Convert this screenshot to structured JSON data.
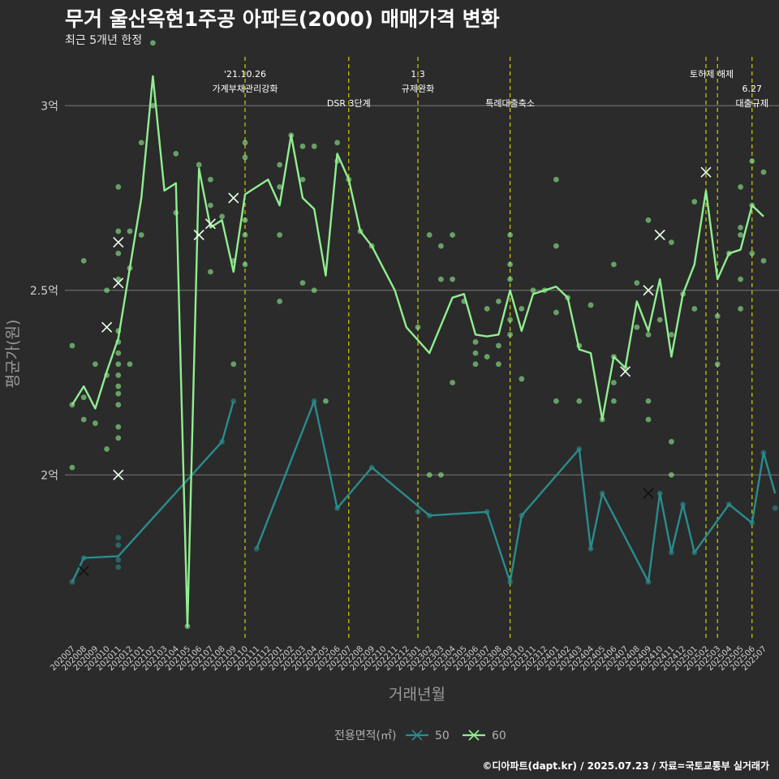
{
  "header": {
    "title": "무거 울산옥현1주공 아파트(2000) 매매가격 변화",
    "subtitle": "최근 5개년 한정"
  },
  "caption": "©디아파트(dapt.kr) / 2025.07.23 / 자료=국토교통부 실거래가",
  "colors": {
    "background": "#2b2b2b",
    "s50": "#2a8c8c",
    "s60": "#90ee90",
    "vline": "#dddd00",
    "grid": "#6a6a6a"
  },
  "chart_data": {
    "type": "line",
    "xlabel": "거래년월",
    "ylabel": "평균가(원)",
    "ylim": [
      15500,
      31500
    ],
    "yticks": [
      {
        "value": 20000,
        "label": "2억"
      },
      {
        "value": 25000,
        "label": "2.5억"
      },
      {
        "value": 30000,
        "label": "3억"
      }
    ],
    "categories": [
      "202007",
      "202008",
      "202009",
      "202010",
      "202011",
      "202012",
      "202101",
      "202102",
      "202103",
      "202104",
      "202105",
      "202106",
      "202107",
      "202108",
      "202109",
      "202110",
      "202111",
      "202112",
      "202201",
      "202202",
      "202203",
      "202204",
      "202205",
      "202206",
      "202207",
      "202208",
      "202209",
      "202210",
      "202211",
      "202212",
      "202301",
      "202302",
      "202303",
      "202304",
      "202305",
      "202306",
      "202307",
      "202308",
      "202309",
      "202310",
      "202311",
      "202312",
      "202401",
      "202402",
      "202403",
      "202404",
      "202405",
      "202406",
      "202407",
      "202408",
      "202409",
      "202410",
      "202411",
      "202412",
      "202501",
      "202502",
      "202503",
      "202504",
      "202505",
      "202506",
      "202507"
    ],
    "legend": {
      "title": "전용면적(㎡)",
      "position": "bottom"
    },
    "series": [
      {
        "name": "50",
        "color": "#2a8c8c",
        "points": [
          [
            0,
            17.1
          ],
          [
            1,
            17.75
          ],
          [
            4,
            17.8
          ],
          [
            13,
            20.9
          ],
          [
            14,
            22.0
          ],
          [
            15,
            null
          ],
          [
            16,
            18.0
          ],
          [
            21,
            22.0
          ],
          [
            23,
            19.1
          ],
          [
            26,
            20.2
          ],
          [
            31,
            18.9
          ],
          [
            36,
            19.0
          ],
          [
            38,
            17.1
          ],
          [
            39,
            18.9
          ],
          [
            44,
            20.7
          ],
          [
            45,
            18.0
          ],
          [
            46,
            19.5
          ],
          [
            50,
            17.1
          ],
          [
            51,
            19.5
          ],
          [
            52,
            17.9
          ],
          [
            53,
            19.2
          ],
          [
            54,
            17.9
          ],
          [
            57,
            19.2
          ],
          [
            59,
            18.7
          ],
          [
            60,
            20.6
          ],
          [
            61,
            19.5
          ]
        ],
        "dots": [
          [
            0,
            17.1
          ],
          [
            1,
            17.75
          ],
          [
            4,
            17.5
          ],
          [
            4,
            17.7
          ],
          [
            4,
            18.1
          ],
          [
            4,
            18.3
          ],
          [
            13,
            20.9
          ],
          [
            14,
            22.0
          ],
          [
            16,
            18.0
          ],
          [
            21,
            22.0
          ],
          [
            23,
            19.1
          ],
          [
            26,
            20.2
          ],
          [
            30,
            19.0
          ],
          [
            31,
            18.9
          ],
          [
            36,
            19.0
          ],
          [
            38,
            17.1
          ],
          [
            39,
            18.9
          ],
          [
            44,
            20.7
          ],
          [
            45,
            18.0
          ],
          [
            46,
            19.5
          ],
          [
            50,
            17.1
          ],
          [
            51,
            19.5
          ],
          [
            52,
            17.9
          ],
          [
            53,
            19.2
          ],
          [
            54,
            17.9
          ],
          [
            57,
            19.2
          ],
          [
            59,
            18.7
          ],
          [
            60,
            20.6
          ],
          [
            61,
            19.1
          ]
        ],
        "xmarks": [
          [
            1,
            17.4
          ],
          [
            50,
            19.5
          ]
        ]
      },
      {
        "name": "60",
        "color": "#90ee90",
        "points": [
          [
            0,
            21.9
          ],
          [
            1,
            22.4
          ],
          [
            2,
            21.8
          ],
          [
            3,
            22.8
          ],
          [
            4,
            23.7
          ],
          [
            5,
            25.6
          ],
          [
            6,
            27.5
          ],
          [
            7,
            30.8
          ],
          [
            8,
            27.7
          ],
          [
            9,
            27.9
          ],
          [
            10,
            15.9
          ],
          [
            11,
            28.3
          ],
          [
            12,
            26.7
          ],
          [
            13,
            26.9
          ],
          [
            14,
            25.5
          ],
          [
            15,
            27.6
          ],
          [
            17,
            28.0
          ],
          [
            18,
            27.3
          ],
          [
            19,
            29.2
          ],
          [
            20,
            27.5
          ],
          [
            21,
            27.2
          ],
          [
            22,
            25.4
          ],
          [
            23,
            28.7
          ],
          [
            24,
            28.0
          ],
          [
            25,
            26.6
          ],
          [
            26,
            26.2
          ],
          [
            28,
            25.0
          ],
          [
            29,
            24.0
          ],
          [
            31,
            23.3
          ],
          [
            33,
            24.8
          ],
          [
            34,
            24.9
          ],
          [
            35,
            23.8
          ],
          [
            36,
            23.75
          ],
          [
            37,
            23.8
          ],
          [
            38,
            25.0
          ],
          [
            39,
            23.9
          ],
          [
            40,
            24.9
          ],
          [
            41,
            25.0
          ],
          [
            42,
            25.1
          ],
          [
            43,
            24.8
          ],
          [
            44,
            23.4
          ],
          [
            45,
            23.3
          ],
          [
            46,
            21.5
          ],
          [
            47,
            23.2
          ],
          [
            48,
            22.9
          ],
          [
            49,
            24.7
          ],
          [
            50,
            23.9
          ],
          [
            51,
            25.3
          ],
          [
            52,
            23.2
          ],
          [
            53,
            24.9
          ],
          [
            54,
            25.7
          ],
          [
            55,
            27.7
          ],
          [
            56,
            25.3
          ],
          [
            57,
            26.0
          ],
          [
            58,
            26.1
          ],
          [
            59,
            27.3
          ],
          [
            60,
            27.0
          ]
        ],
        "dots": [
          [
            0,
            21.9
          ],
          [
            0,
            23.5
          ],
          [
            0,
            20.2
          ],
          [
            1,
            22.1
          ],
          [
            1,
            25.8
          ],
          [
            1,
            21.5
          ],
          [
            2,
            21.4
          ],
          [
            2,
            23.0
          ],
          [
            3,
            22.7
          ],
          [
            3,
            25.0
          ],
          [
            3,
            20.7
          ],
          [
            4,
            23.9
          ],
          [
            4,
            23.6
          ],
          [
            4,
            23.3
          ],
          [
            4,
            23.0
          ],
          [
            4,
            22.7
          ],
          [
            4,
            22.4
          ],
          [
            4,
            22.2
          ],
          [
            4,
            21.9
          ],
          [
            4,
            21.3
          ],
          [
            4,
            21.0
          ],
          [
            4,
            26.0
          ],
          [
            4,
            26.6
          ],
          [
            4,
            27.8
          ],
          [
            4,
            25.3
          ],
          [
            5,
            25.6
          ],
          [
            5,
            26.6
          ],
          [
            5,
            23.0
          ],
          [
            6,
            26.5
          ],
          [
            6,
            29.0
          ],
          [
            7,
            31.7
          ],
          [
            7,
            30.0
          ],
          [
            9,
            28.7
          ],
          [
            9,
            27.1
          ],
          [
            10,
            15.9
          ],
          [
            11,
            28.4
          ],
          [
            12,
            28.0
          ],
          [
            12,
            25.5
          ],
          [
            12,
            27.3
          ],
          [
            13,
            27.0
          ],
          [
            14,
            25.8
          ],
          [
            14,
            23.0
          ],
          [
            15,
            29.0
          ],
          [
            15,
            28.6
          ],
          [
            15,
            25.7
          ],
          [
            15,
            26.5
          ],
          [
            15,
            26.9
          ],
          [
            18,
            27.8
          ],
          [
            18,
            26.5
          ],
          [
            18,
            28.4
          ],
          [
            18,
            24.7
          ],
          [
            19,
            29.2
          ],
          [
            20,
            28.9
          ],
          [
            20,
            28.0
          ],
          [
            20,
            25.2
          ],
          [
            21,
            28.9
          ],
          [
            21,
            25.0
          ],
          [
            22,
            22.0
          ],
          [
            23,
            29.0
          ],
          [
            23,
            28.5
          ],
          [
            24,
            28.0
          ],
          [
            25,
            26.6
          ],
          [
            26,
            26.2
          ],
          [
            30,
            24.0
          ],
          [
            31,
            26.5
          ],
          [
            31,
            20.0
          ],
          [
            32,
            20.0
          ],
          [
            32,
            26.2
          ],
          [
            32,
            25.3
          ],
          [
            33,
            26.5
          ],
          [
            33,
            25.3
          ],
          [
            33,
            22.5
          ],
          [
            34,
            24.7
          ],
          [
            35,
            23.6
          ],
          [
            35,
            23.3
          ],
          [
            35,
            23.0
          ],
          [
            36,
            23.2
          ],
          [
            36,
            24.5
          ],
          [
            37,
            23.0
          ],
          [
            37,
            24.7
          ],
          [
            37,
            23.5
          ],
          [
            38,
            26.5
          ],
          [
            38,
            25.7
          ],
          [
            38,
            25.3
          ],
          [
            38,
            24.2
          ],
          [
            38,
            23.8
          ],
          [
            39,
            24.5
          ],
          [
            39,
            22.6
          ],
          [
            40,
            25.0
          ],
          [
            41,
            25.0
          ],
          [
            42,
            28.0
          ],
          [
            42,
            26.2
          ],
          [
            42,
            24.4
          ],
          [
            42,
            22.0
          ],
          [
            43,
            24.8
          ],
          [
            44,
            22.0
          ],
          [
            44,
            23.5
          ],
          [
            45,
            24.6
          ],
          [
            46,
            21.5
          ],
          [
            47,
            25.7
          ],
          [
            47,
            23.2
          ],
          [
            47,
            22.0
          ],
          [
            47,
            22.5
          ],
          [
            48,
            22.9
          ],
          [
            49,
            24.0
          ],
          [
            49,
            25.2
          ],
          [
            50,
            26.9
          ],
          [
            50,
            22.0
          ],
          [
            50,
            21.5
          ],
          [
            50,
            23.8
          ],
          [
            51,
            24.2
          ],
          [
            52,
            23.8
          ],
          [
            52,
            26.3
          ],
          [
            52,
            20.9
          ],
          [
            52,
            20.0
          ],
          [
            53,
            24.9
          ],
          [
            54,
            24.5
          ],
          [
            54,
            27.4
          ],
          [
            56,
            23.0
          ],
          [
            56,
            24.3
          ],
          [
            57,
            26.0
          ],
          [
            58,
            27.8
          ],
          [
            58,
            26.5
          ],
          [
            58,
            25.3
          ],
          [
            58,
            24.5
          ],
          [
            58,
            26.7
          ],
          [
            59,
            28.5
          ],
          [
            59,
            26.0
          ],
          [
            59,
            27.3
          ],
          [
            60,
            28.2
          ],
          [
            60,
            25.8
          ]
        ],
        "xmarks": [
          [
            4,
            26.3
          ],
          [
            4,
            25.2
          ],
          [
            3,
            24.0
          ],
          [
            4,
            20.0
          ],
          [
            11,
            26.5
          ],
          [
            12,
            26.8
          ],
          [
            14,
            27.5
          ],
          [
            48,
            22.8
          ],
          [
            51,
            26.5
          ],
          [
            55,
            28.2
          ],
          [
            50,
            25.0
          ]
        ]
      }
    ],
    "annotations": [
      {
        "x": 15,
        "lines": [
          "'21.10.26",
          "가계부채관리강화"
        ]
      },
      {
        "x": 24,
        "lines": [
          "",
          "",
          "DSR 3단계"
        ]
      },
      {
        "x": 30,
        "lines": [
          "1.3",
          "규제완화"
        ]
      },
      {
        "x": 38,
        "lines": [
          "",
          "",
          "특례대출축소"
        ]
      },
      {
        "x": 55.5,
        "lines": [
          "토허제 해제"
        ]
      },
      {
        "x": 59,
        "lines": [
          "",
          "6.27",
          "대출규제"
        ]
      }
    ],
    "vlines": [
      15,
      24,
      30,
      38,
      55,
      56,
      59
    ]
  }
}
